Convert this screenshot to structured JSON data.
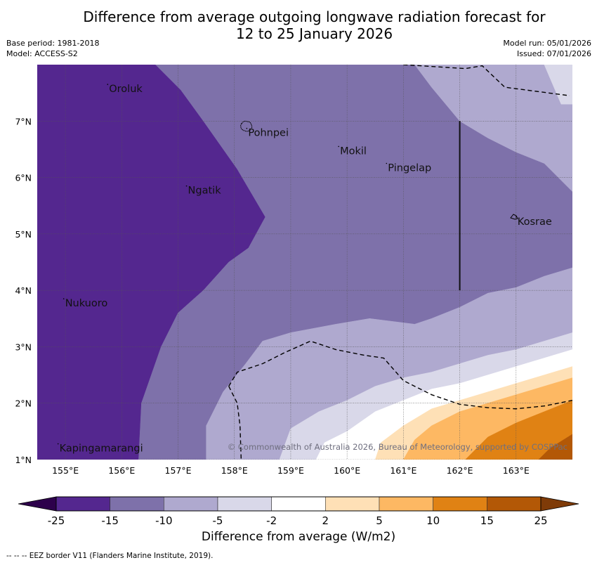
{
  "header": {
    "title_line1": "Difference from average outgoing longwave radiation forecast for",
    "title_line2": "12 to 25 January 2026",
    "base_period": "Base period: 1981-2018",
    "model": "Model: ACCESS-S2",
    "model_run": "Model run: 05/01/2026",
    "issued": "Issued: 07/01/2026"
  },
  "map": {
    "extent": {
      "lon": [
        154.5,
        164.0
      ],
      "lat": [
        1.0,
        8.0
      ]
    },
    "lon_ticks": [
      {
        "value": 155,
        "label": "155°E"
      },
      {
        "value": 156,
        "label": "156°E"
      },
      {
        "value": 157,
        "label": "157°E"
      },
      {
        "value": 158,
        "label": "158°E"
      },
      {
        "value": 159,
        "label": "159°E"
      },
      {
        "value": 160,
        "label": "160°E"
      },
      {
        "value": 161,
        "label": "161°E"
      },
      {
        "value": 162,
        "label": "162°E"
      },
      {
        "value": 163,
        "label": "163°E"
      }
    ],
    "lat_ticks": [
      {
        "value": 1,
        "label": "1°N"
      },
      {
        "value": 2,
        "label": "2°N"
      },
      {
        "value": 3,
        "label": "3°N"
      },
      {
        "value": 4,
        "label": "4°N"
      },
      {
        "value": 5,
        "label": "5°N"
      },
      {
        "value": 6,
        "label": "6°N"
      },
      {
        "value": 7,
        "label": "7°N"
      }
    ],
    "places": [
      {
        "name": "Oroluk",
        "lon": 155.75,
        "lat": 7.65
      },
      {
        "name": "Pohnpei",
        "lon": 158.22,
        "lat": 6.87
      },
      {
        "name": "Mokil",
        "lon": 159.85,
        "lat": 6.55
      },
      {
        "name": "Pingelap",
        "lon": 160.7,
        "lat": 6.25
      },
      {
        "name": "Ngatik",
        "lon": 157.15,
        "lat": 5.85
      },
      {
        "name": "Kosrae",
        "lon": 163.0,
        "lat": 5.3
      },
      {
        "name": "Nukuoro",
        "lon": 154.97,
        "lat": 3.85
      },
      {
        "name": "Kapingamarangi",
        "lon": 154.87,
        "lat": 1.28
      }
    ],
    "copyright": "© Commonwealth of Australia 2026, Bureau of Meteorology, supported by COSPPac",
    "contours": [
      {
        "level": "-25 to -15",
        "color": "#54278f",
        "points": [
          [
            154.5,
            8.0
          ],
          [
            156.6,
            8.0
          ],
          [
            157.05,
            7.55
          ],
          [
            157.45,
            7.0
          ],
          [
            158.05,
            6.15
          ],
          [
            158.55,
            5.3
          ],
          [
            158.25,
            4.75
          ],
          [
            157.9,
            4.5
          ],
          [
            157.45,
            4.0
          ],
          [
            157.0,
            3.6
          ],
          [
            156.7,
            3.0
          ],
          [
            156.35,
            2.0
          ],
          [
            156.3,
            1.0
          ],
          [
            154.5,
            1.0
          ]
        ]
      },
      {
        "level": "-15 to -10",
        "color": "#7e71aa",
        "points": [
          [
            156.6,
            8.0
          ],
          [
            161.2,
            8.0
          ],
          [
            161.5,
            7.6
          ],
          [
            162.0,
            7.0
          ],
          [
            162.5,
            6.7
          ],
          [
            163.0,
            6.45
          ],
          [
            163.5,
            6.25
          ],
          [
            164.0,
            5.75
          ],
          [
            164.0,
            4.4
          ],
          [
            163.5,
            4.25
          ],
          [
            163.0,
            4.05
          ],
          [
            162.5,
            3.95
          ],
          [
            162.0,
            3.7
          ],
          [
            161.5,
            3.5
          ],
          [
            161.2,
            3.4
          ],
          [
            160.4,
            3.5
          ],
          [
            159.8,
            3.4
          ],
          [
            159.0,
            3.25
          ],
          [
            158.5,
            3.1
          ],
          [
            158.2,
            2.7
          ],
          [
            157.8,
            2.2
          ],
          [
            157.5,
            1.6
          ],
          [
            157.5,
            1.0
          ],
          [
            156.3,
            1.0
          ],
          [
            156.35,
            2.0
          ],
          [
            156.7,
            3.0
          ],
          [
            157.0,
            3.6
          ],
          [
            157.45,
            4.0
          ],
          [
            157.9,
            4.5
          ],
          [
            158.25,
            4.75
          ],
          [
            158.55,
            5.3
          ],
          [
            158.05,
            6.15
          ],
          [
            157.45,
            7.0
          ],
          [
            157.05,
            7.55
          ]
        ]
      },
      {
        "level": "-10 to -5",
        "color": "#afa9cf",
        "points": [
          [
            161.2,
            8.0
          ],
          [
            163.5,
            8.0
          ],
          [
            163.8,
            7.3
          ],
          [
            164.0,
            7.3
          ],
          [
            164.0,
            5.75
          ],
          [
            163.5,
            6.25
          ],
          [
            163.0,
            6.45
          ],
          [
            162.5,
            6.7
          ],
          [
            162.0,
            7.0
          ],
          [
            161.5,
            7.6
          ]
        ]
      },
      {
        "level": "-10 to -5 (south)",
        "color": "#afa9cf",
        "points": [
          [
            157.5,
            1.0
          ],
          [
            157.5,
            1.6
          ],
          [
            157.8,
            2.2
          ],
          [
            158.2,
            2.7
          ],
          [
            158.5,
            3.1
          ],
          [
            159.0,
            3.25
          ],
          [
            159.8,
            3.4
          ],
          [
            160.4,
            3.5
          ],
          [
            161.2,
            3.4
          ],
          [
            161.5,
            3.5
          ],
          [
            162.0,
            3.7
          ],
          [
            162.5,
            3.95
          ],
          [
            163.0,
            4.05
          ],
          [
            163.5,
            4.25
          ],
          [
            164.0,
            4.4
          ],
          [
            164.0,
            3.25
          ],
          [
            163.5,
            3.1
          ],
          [
            163.0,
            2.95
          ],
          [
            162.5,
            2.85
          ],
          [
            162.0,
            2.7
          ],
          [
            161.5,
            2.55
          ],
          [
            161.0,
            2.45
          ],
          [
            160.5,
            2.3
          ],
          [
            160.0,
            2.05
          ],
          [
            159.5,
            1.85
          ],
          [
            159.0,
            1.55
          ],
          [
            158.8,
            1.0
          ]
        ]
      },
      {
        "level": "-5 to -2",
        "color": "#d9d8e9",
        "points": [
          [
            163.5,
            8.0
          ],
          [
            164.0,
            8.0
          ],
          [
            164.0,
            7.3
          ],
          [
            163.8,
            7.3
          ]
        ]
      },
      {
        "level": "-5 to -2 (south)",
        "color": "#d9d8e9",
        "points": [
          [
            158.8,
            1.0
          ],
          [
            159.0,
            1.55
          ],
          [
            159.5,
            1.85
          ],
          [
            160.0,
            2.05
          ],
          [
            160.5,
            2.3
          ],
          [
            161.0,
            2.45
          ],
          [
            161.5,
            2.55
          ],
          [
            162.0,
            2.7
          ],
          [
            162.5,
            2.85
          ],
          [
            163.0,
            2.95
          ],
          [
            163.5,
            3.1
          ],
          [
            164.0,
            3.25
          ],
          [
            164.0,
            2.95
          ],
          [
            163.5,
            2.8
          ],
          [
            163.0,
            2.65
          ],
          [
            162.5,
            2.5
          ],
          [
            162.0,
            2.35
          ],
          [
            161.5,
            2.25
          ],
          [
            161.0,
            2.05
          ],
          [
            160.5,
            1.85
          ],
          [
            160.0,
            1.5
          ],
          [
            159.6,
            1.3
          ],
          [
            159.45,
            1.0
          ]
        ]
      },
      {
        "level": "-2 to 2",
        "color": "#ffffff",
        "points": [
          [
            159.45,
            1.0
          ],
          [
            159.6,
            1.3
          ],
          [
            160.0,
            1.5
          ],
          [
            160.5,
            1.85
          ],
          [
            161.0,
            2.05
          ],
          [
            161.5,
            2.25
          ],
          [
            162.0,
            2.35
          ],
          [
            162.5,
            2.5
          ],
          [
            163.0,
            2.65
          ],
          [
            163.5,
            2.8
          ],
          [
            164.0,
            2.95
          ],
          [
            164.0,
            2.65
          ],
          [
            163.5,
            2.5
          ],
          [
            163.0,
            2.35
          ],
          [
            162.5,
            2.2
          ],
          [
            162.0,
            2.05
          ],
          [
            161.5,
            1.9
          ],
          [
            161.0,
            1.6
          ],
          [
            160.6,
            1.3
          ],
          [
            160.5,
            1.0
          ]
        ]
      },
      {
        "level": "2 to 5",
        "color": "#fee0b6",
        "points": [
          [
            160.5,
            1.0
          ],
          [
            160.6,
            1.3
          ],
          [
            161.0,
            1.6
          ],
          [
            161.5,
            1.9
          ],
          [
            162.0,
            2.05
          ],
          [
            162.5,
            2.2
          ],
          [
            163.0,
            2.35
          ],
          [
            163.5,
            2.5
          ],
          [
            164.0,
            2.65
          ],
          [
            164.0,
            2.45
          ],
          [
            163.5,
            2.3
          ],
          [
            163.0,
            2.15
          ],
          [
            162.5,
            2.0
          ],
          [
            162.0,
            1.85
          ],
          [
            161.5,
            1.6
          ],
          [
            161.2,
            1.35
          ],
          [
            161.0,
            1.0
          ]
        ]
      },
      {
        "level": "5 to 10",
        "color": "#fdb863",
        "points": [
          [
            161.0,
            1.0
          ],
          [
            161.2,
            1.35
          ],
          [
            161.5,
            1.6
          ],
          [
            162.0,
            1.85
          ],
          [
            162.5,
            2.0
          ],
          [
            163.0,
            2.15
          ],
          [
            163.5,
            2.3
          ],
          [
            164.0,
            2.45
          ],
          [
            164.0,
            2.05
          ],
          [
            163.5,
            1.85
          ],
          [
            163.0,
            1.65
          ],
          [
            162.5,
            1.4
          ],
          [
            162.1,
            1.0
          ]
        ]
      },
      {
        "level": "10 to 15",
        "color": "#e08214",
        "points": [
          [
            162.1,
            1.0
          ],
          [
            162.5,
            1.4
          ],
          [
            163.0,
            1.65
          ],
          [
            163.5,
            1.85
          ],
          [
            164.0,
            2.05
          ],
          [
            164.0,
            1.45
          ],
          [
            163.6,
            1.2
          ],
          [
            163.4,
            1.0
          ]
        ]
      },
      {
        "level": "15 to 25",
        "color": "#b35806",
        "points": [
          [
            163.4,
            1.0
          ],
          [
            163.6,
            1.2
          ],
          [
            164.0,
            1.45
          ],
          [
            164.0,
            1.0
          ]
        ]
      }
    ],
    "eez_borders": [
      [
        [
          161.0,
          8.0
        ],
        [
          162.1,
          7.93
        ],
        [
          162.4,
          7.98
        ],
        [
          162.8,
          7.6
        ],
        [
          163.95,
          7.45
        ]
      ],
      [
        [
          157.9,
          2.3
        ],
        [
          158.05,
          2.55
        ],
        [
          158.5,
          2.7
        ],
        [
          158.9,
          2.9
        ],
        [
          159.35,
          3.1
        ],
        [
          159.8,
          2.95
        ],
        [
          160.3,
          2.85
        ],
        [
          160.65,
          2.8
        ],
        [
          161.0,
          2.4
        ],
        [
          161.5,
          2.15
        ],
        [
          162.0,
          1.98
        ],
        [
          162.5,
          1.92
        ],
        [
          163.0,
          1.9
        ],
        [
          163.5,
          1.95
        ],
        [
          164.0,
          2.05
        ]
      ],
      [
        [
          157.9,
          2.3
        ],
        [
          158.05,
          2.0
        ],
        [
          158.1,
          1.6
        ],
        [
          158.12,
          1.0
        ]
      ]
    ],
    "boundary_line": [
      [
        162.0,
        7.0
      ],
      [
        162.0,
        4.0
      ]
    ]
  },
  "colorbar": {
    "label": "Difference from average (W/m2)",
    "extend_min_color": "#2d004b",
    "extend_max_color": "#7f3b08",
    "bins": [
      {
        "from": -25,
        "to": -15,
        "color": "#54278f"
      },
      {
        "from": -15,
        "to": -10,
        "color": "#7e71aa"
      },
      {
        "from": -10,
        "to": -5,
        "color": "#afa9cf"
      },
      {
        "from": -5,
        "to": -2,
        "color": "#d9d8e9"
      },
      {
        "from": -2,
        "to": 2,
        "color": "#ffffff"
      },
      {
        "from": 2,
        "to": 5,
        "color": "#fee0b6"
      },
      {
        "from": 5,
        "to": 10,
        "color": "#fdb863"
      },
      {
        "from": 10,
        "to": 15,
        "color": "#e08214"
      },
      {
        "from": 15,
        "to": 25,
        "color": "#b35806"
      }
    ],
    "tick_labels": [
      "-25",
      "-15",
      "-10",
      "-5",
      "-2",
      "2",
      "5",
      "10",
      "15",
      "25"
    ]
  },
  "footer": {
    "eez_note": "--  --  -- EEZ border V11 (Flanders Marine Institute, 2019)."
  }
}
